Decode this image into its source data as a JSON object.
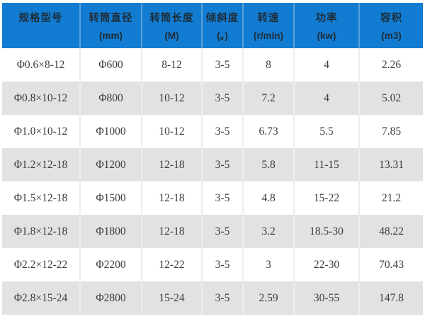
{
  "colors": {
    "header_bg": "#127CD2",
    "header_divider": "#5AA0D7",
    "header_text": "#1E2B36",
    "row_alt_bg": "#E2E2E2",
    "body_divider": "#EDEDED",
    "body_text": "#3C3C3C",
    "page_bg": "#FFFFFF"
  },
  "table": {
    "columns": [
      {
        "label": "规格型号",
        "unit": ""
      },
      {
        "label": "转筒直径",
        "unit": "(mm)"
      },
      {
        "label": "转筒长度",
        "unit": "(M)"
      },
      {
        "label": "倾斜度",
        "unit": "(。)"
      },
      {
        "label": "转速",
        "unit": "(r/min)"
      },
      {
        "label": "功率",
        "unit": "(kw)"
      },
      {
        "label": "容积",
        "unit": "(m3)"
      }
    ],
    "rows": [
      [
        "Φ0.6×8-12",
        "Φ600",
        "8-12",
        "3-5",
        "8",
        "4",
        "2.26"
      ],
      [
        "Φ0.8×10-12",
        "Φ800",
        "10-12",
        "3-5",
        "7.2",
        "4",
        "5.02"
      ],
      [
        "Φ1.0×10-12",
        "Φ1000",
        "10-12",
        "3-5",
        "6.73",
        "5.5",
        "7.85"
      ],
      [
        "Φ1.2×12-18",
        "Φ1200",
        "12-18",
        "3-5",
        "5.8",
        "11-15",
        "13.31"
      ],
      [
        "Φ1.5×12-18",
        "Φ1500",
        "12-18",
        "3-5",
        "4.8",
        "15-22",
        "21.2"
      ],
      [
        "Φ1.8×12-18",
        "Φ1800",
        "12-18",
        "3-5",
        "3.2",
        "18.5-30",
        "48.22"
      ],
      [
        "Φ2.2×12-22",
        "Φ2200",
        "12-22",
        "3-5",
        "3",
        "22-30",
        "70.43"
      ],
      [
        "Φ2.8×15-24",
        "Φ2800",
        "15-24",
        "3-5",
        "2.59",
        "30-55",
        "147.8"
      ]
    ]
  },
  "chart_data": {
    "type": "table",
    "title": "",
    "columns": [
      "规格型号",
      "转筒直径 (mm)",
      "转筒长度 (M)",
      "倾斜度 (。)",
      "转速 (r/min)",
      "功率 (kw)",
      "容积 (m3)"
    ],
    "rows": [
      [
        "Φ0.6×8-12",
        "Φ600",
        "8-12",
        "3-5",
        "8",
        "4",
        "2.26"
      ],
      [
        "Φ0.8×10-12",
        "Φ800",
        "10-12",
        "3-5",
        "7.2",
        "4",
        "5.02"
      ],
      [
        "Φ1.0×10-12",
        "Φ1000",
        "10-12",
        "3-5",
        "6.73",
        "5.5",
        "7.85"
      ],
      [
        "Φ1.2×12-18",
        "Φ1200",
        "12-18",
        "3-5",
        "5.8",
        "11-15",
        "13.31"
      ],
      [
        "Φ1.5×12-18",
        "Φ1500",
        "12-18",
        "3-5",
        "4.8",
        "15-22",
        "21.2"
      ],
      [
        "Φ1.8×12-18",
        "Φ1800",
        "12-18",
        "3-5",
        "3.2",
        "18.5-30",
        "48.22"
      ],
      [
        "Φ2.2×12-22",
        "Φ2200",
        "12-22",
        "3-5",
        "3",
        "22-30",
        "70.43"
      ],
      [
        "Φ2.8×15-24",
        "Φ2800",
        "15-24",
        "3-5",
        "2.59",
        "30-55",
        "147.8"
      ]
    ],
    "layout_hints": {
      "header_style": "blue banner, two-line (label + unit)",
      "row_striping": "odd white, even light gray",
      "alignment": "all cells centered"
    }
  }
}
